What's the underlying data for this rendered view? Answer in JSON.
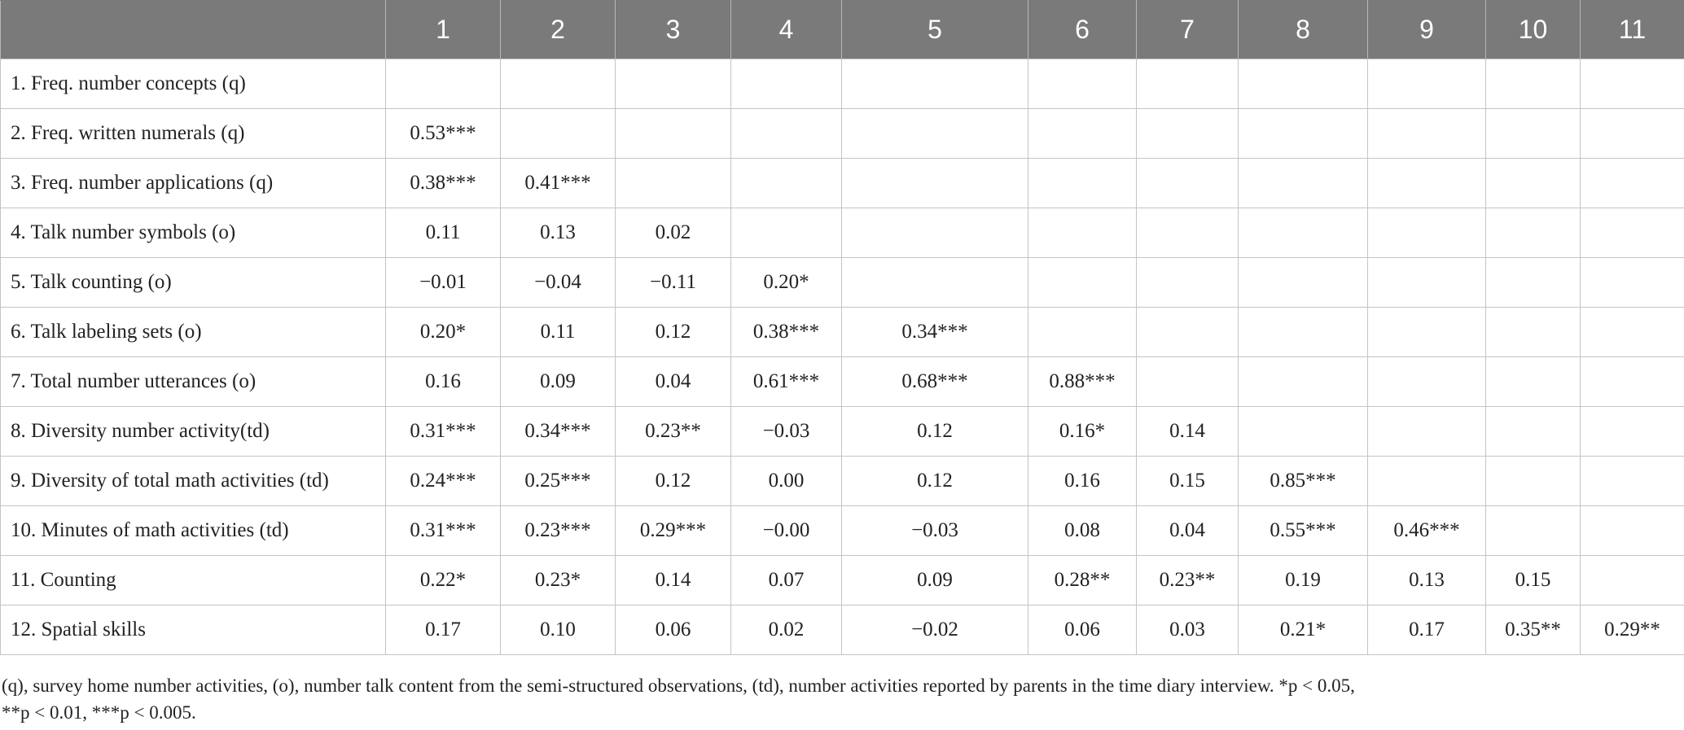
{
  "table": {
    "columns": [
      "",
      "1",
      "2",
      "3",
      "4",
      "5",
      "6",
      "7",
      "8",
      "9",
      "10",
      "11"
    ],
    "rows": [
      {
        "label": "1.  Freq. number concepts (q)",
        "cells": [
          "",
          "",
          "",
          "",
          "",
          "",
          "",
          "",
          "",
          "",
          ""
        ]
      },
      {
        "label": "2.  Freq. written numerals (q)",
        "cells": [
          "0.53***",
          "",
          "",
          "",
          "",
          "",
          "",
          "",
          "",
          "",
          ""
        ]
      },
      {
        "label": "3.  Freq. number applications (q)",
        "cells": [
          "0.38***",
          "0.41***",
          "",
          "",
          "",
          "",
          "",
          "",
          "",
          "",
          ""
        ]
      },
      {
        "label": "4.  Talk number symbols (o)",
        "cells": [
          "0.11",
          "0.13",
          "0.02",
          "",
          "",
          "",
          "",
          "",
          "",
          "",
          ""
        ]
      },
      {
        "label": "5.  Talk counting (o)",
        "cells": [
          "−0.01",
          "−0.04",
          "−0.11",
          "0.20*",
          "",
          "",
          "",
          "",
          "",
          "",
          ""
        ]
      },
      {
        "label": "6.  Talk labeling sets (o)",
        "cells": [
          "0.20*",
          "0.11",
          "0.12",
          "0.38***",
          "0.34***",
          "",
          "",
          "",
          "",
          "",
          ""
        ]
      },
      {
        "label": "7.  Total number utterances (o)",
        "cells": [
          "0.16",
          "0.09",
          "0.04",
          "0.61***",
          "0.68***",
          "0.88***",
          "",
          "",
          "",
          "",
          ""
        ]
      },
      {
        "label": "8.  Diversity number activity(td)",
        "cells": [
          "0.31***",
          "0.34***",
          "0.23**",
          "−0.03",
          "0.12",
          "0.16*",
          "0.14",
          "",
          "",
          "",
          ""
        ]
      },
      {
        "label": "9.  Diversity of total math activities (td)",
        "cells": [
          "0.24***",
          "0.25***",
          "0.12",
          "0.00",
          "0.12",
          "0.16",
          "0.15",
          "0.85***",
          "",
          "",
          ""
        ]
      },
      {
        "label": "10. Minutes of math activities (td)",
        "cells": [
          "0.31***",
          "0.23***",
          "0.29***",
          "−0.00",
          "−0.03",
          "0.08",
          "0.04",
          "0.55***",
          "0.46***",
          "",
          ""
        ]
      },
      {
        "label": "11. Counting",
        "cells": [
          "0.22*",
          "0.23*",
          "0.14",
          "0.07",
          "0.09",
          "0.28**",
          "0.23**",
          "0.19",
          "0.13",
          "0.15",
          ""
        ]
      },
      {
        "label": "12. Spatial skills",
        "cells": [
          "0.17",
          "0.10",
          "0.06",
          "0.02",
          "−0.02",
          "0.06",
          "0.03",
          "0.21*",
          "0.17",
          "0.35**",
          "0.29**"
        ]
      }
    ]
  },
  "footnote": {
    "line1": "(q), survey home number activities, (o), number talk content from the semi-structured observations, (td), number activities reported by parents in the time diary interview. *p < 0.05,",
    "line2": "**p < 0.01, ***p < 0.005."
  }
}
